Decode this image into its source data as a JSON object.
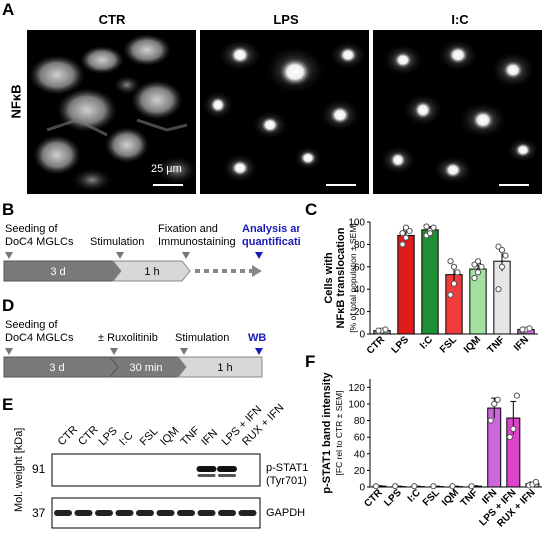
{
  "panel_labels": {
    "A": "A",
    "B": "B",
    "C": "C",
    "D": "D",
    "E": "E",
    "F": "F"
  },
  "panel_a": {
    "titles": [
      "CTR",
      "LPS",
      "I:C"
    ],
    "ylabel": "NFκB",
    "scalebar_label": "25 µm"
  },
  "panel_b": {
    "steps": [
      "Seeding of\nDoC4 MGLCs",
      "Stimulation",
      "Fixation and\nImmunostaining",
      "Analysis and\nquantification"
    ],
    "durations": [
      "3 d",
      "1 h"
    ]
  },
  "panel_d": {
    "steps": [
      "Seeding of\nDoC4 MGLCs",
      "± Ruxolitinib",
      "Stimulation",
      "WB"
    ],
    "durations": [
      "3 d",
      "30 min",
      "1 h"
    ]
  },
  "panel_e": {
    "lanes": [
      "CTR",
      "CTR",
      "LPS",
      "I:C",
      "FSL",
      "IQM",
      "TNF",
      "IFN",
      "LPS + IFN",
      "RUX + IFN"
    ],
    "ylabel": "Mol. weight [kDa]",
    "mw": [
      "91",
      "37"
    ],
    "bands": [
      "p-STAT1",
      "(Tyr701)",
      "GAPDH"
    ]
  },
  "colors": {
    "CTR": "#9a9a9a",
    "LPS": "#e01b1b",
    "I:C": "#1e8f32",
    "FSL": "#f03c3c",
    "IQM": "#a4e0a0",
    "TNF": "#e6e6e6",
    "IFN": "#cc66dd",
    "LPS + IFN": "#dd44cc",
    "RUX + IFN": "#cccccc",
    "blue": "#1a1ab8",
    "arrow_gray": "#777777"
  },
  "chart_data": [
    {
      "panel": "C",
      "type": "bar",
      "categories": [
        "CTR",
        "LPS",
        "I:C",
        "FSL",
        "IQM",
        "TNF",
        "IFN"
      ],
      "values": [
        3,
        88,
        93,
        53,
        58,
        65,
        4
      ],
      "errors": [
        1,
        5,
        3,
        8,
        5,
        9,
        1
      ],
      "points": [
        [
          2,
          3,
          4,
          3
        ],
        [
          80,
          86,
          92,
          90,
          95
        ],
        [
          88,
          92,
          95,
          96,
          90
        ],
        [
          35,
          45,
          55,
          65,
          60
        ],
        [
          50,
          55,
          60,
          62,
          65
        ],
        [
          40,
          60,
          70,
          78,
          75
        ],
        [
          3,
          4,
          5,
          4
        ]
      ],
      "ylabel": "Cells with\nNFκB translocation",
      "ylabel2": "[% of total population ± SEM]",
      "ylim": [
        0,
        100
      ],
      "yticks": [
        "0",
        "20",
        "40",
        "60",
        "80",
        "100"
      ]
    },
    {
      "panel": "F",
      "type": "bar",
      "categories": [
        "CTR",
        "LPS",
        "I:C",
        "FSL",
        "IQM",
        "TNF",
        "IFN",
        "LPS + IFN",
        "RUX + IFN"
      ],
      "values": [
        1,
        0.5,
        0.5,
        0.5,
        0.5,
        1,
        95,
        83,
        4
      ],
      "errors": [
        0.5,
        0.5,
        0.5,
        0.5,
        0.5,
        0.5,
        12,
        20,
        2
      ],
      "points": [
        [
          1
        ],
        [
          1
        ],
        [
          1
        ],
        [
          1
        ],
        [
          1
        ],
        [
          1
        ],
        [
          80,
          100,
          105
        ],
        [
          60,
          70,
          110
        ],
        [
          2,
          3,
          6
        ]
      ],
      "ylabel": "p-STAT1 band intensity",
      "ylabel2": "[FC rel to CTR ± SEM]",
      "ylim": [
        0,
        130
      ],
      "yticks": [
        "0",
        "20",
        "40",
        "60",
        "80",
        "100",
        "120"
      ]
    }
  ]
}
